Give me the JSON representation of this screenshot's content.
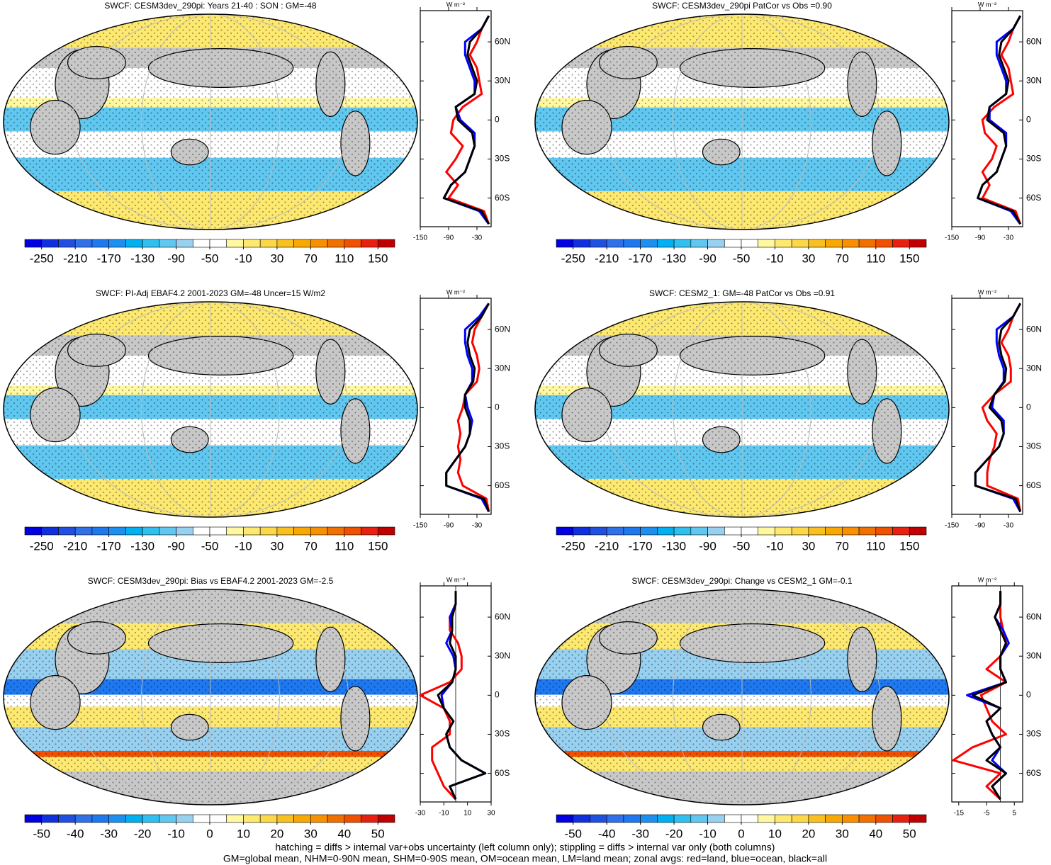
{
  "chart_data": [
    {
      "type": "map-panel",
      "title": "SWCF: CESM3dev_290pi: Years 21-40 : SON : GM=-48",
      "colorbar": {
        "lim": [
          -270,
          170
        ],
        "ticks": [
          -250,
          -210,
          -170,
          -130,
          -90,
          -50,
          -10,
          30,
          70,
          110,
          150
        ]
      },
      "zonal": {
        "units": "W m⁻²",
        "ylim": [
          -82,
          84
        ],
        "xlim": [
          -150,
          0
        ],
        "xticks": [
          -150,
          -90,
          -30
        ],
        "yticks": [
          {
            "value": 60,
            "label": "60N"
          },
          {
            "value": 30,
            "label": "30N"
          },
          0,
          {
            "value": -30,
            "label": "30S"
          },
          {
            "value": -60,
            "label": "60S"
          }
        ],
        "lat": [
          -80,
          -70,
          -60,
          -50,
          -40,
          -30,
          -20,
          -10,
          0,
          10,
          20,
          30,
          40,
          50,
          60,
          70,
          80
        ],
        "series": [
          {
            "color": "#ff0000",
            "values": [
              -5,
              -15,
              -90,
              -70,
              -95,
              -75,
              -60,
              -85,
              -80,
              -60,
              -20,
              -25,
              -30,
              -45,
              -30,
              -20,
              -5
            ]
          },
          {
            "color": "#0000ff",
            "values": [
              -5,
              -25,
              -100,
              -85,
              -55,
              -45,
              -35,
              -35,
              -65,
              -75,
              -35,
              -35,
              -45,
              -55,
              -55,
              -20,
              -5
            ]
          },
          {
            "color": "#000000",
            "values": [
              -5,
              -20,
              -100,
              -85,
              -55,
              -45,
              -35,
              -40,
              -70,
              -75,
              -35,
              -30,
              -40,
              -50,
              -45,
              -20,
              -5
            ]
          }
        ]
      }
    },
    {
      "type": "map-panel",
      "title": "SWCF: CESM3dev_290pi PatCor vs Obs =0.90",
      "colorbar": {
        "lim": [
          -270,
          170
        ],
        "ticks": [
          -250,
          -210,
          -170,
          -130,
          -90,
          -50,
          -10,
          30,
          70,
          110,
          150
        ]
      },
      "zonal": {
        "units": "W m⁻²",
        "ylim": [
          -82,
          84
        ],
        "xlim": [
          -150,
          0
        ],
        "xticks": [
          -150,
          -90,
          -30
        ],
        "yticks": [
          {
            "value": 60,
            "label": "60N"
          },
          {
            "value": 30,
            "label": "30N"
          },
          0,
          {
            "value": -30,
            "label": "30S"
          },
          {
            "value": -60,
            "label": "60S"
          }
        ],
        "lat": [
          -80,
          -70,
          -60,
          -50,
          -40,
          -30,
          -20,
          -10,
          0,
          10,
          20,
          30,
          40,
          50,
          60,
          70,
          80
        ],
        "series": [
          {
            "color": "#ff0000",
            "values": [
              -5,
              -15,
              -85,
              -70,
              -85,
              -65,
              -55,
              -80,
              -85,
              -60,
              -20,
              -25,
              -30,
              -45,
              -30,
              -20,
              -5
            ]
          },
          {
            "color": "#0000ff",
            "values": [
              -5,
              -25,
              -95,
              -85,
              -55,
              -45,
              -35,
              -35,
              -70,
              -70,
              -35,
              -35,
              -45,
              -55,
              -55,
              -20,
              -5
            ]
          },
          {
            "color": "#000000",
            "values": [
              -5,
              -20,
              -95,
              -85,
              -55,
              -45,
              -35,
              -40,
              -75,
              -70,
              -35,
              -30,
              -40,
              -50,
              -45,
              -20,
              -5
            ]
          }
        ]
      }
    },
    {
      "type": "map-panel",
      "title": "SWCF: PI-Adj EBAF4.2 2001-2023 GM=-48 Uncer=15 W/m2",
      "colorbar": {
        "lim": [
          -270,
          170
        ],
        "ticks": [
          -250,
          -210,
          -170,
          -130,
          -90,
          -50,
          -10,
          30,
          70,
          110,
          150
        ]
      },
      "zonal": {
        "units": "W m⁻²",
        "ylim": [
          -82,
          84
        ],
        "xlim": [
          -150,
          0
        ],
        "xticks": [
          -150,
          -90,
          -30
        ],
        "yticks": [
          {
            "value": 60,
            "label": "60N"
          },
          {
            "value": 30,
            "label": "30N"
          },
          0,
          {
            "value": -30,
            "label": "30S"
          },
          {
            "value": -60,
            "label": "60S"
          }
        ],
        "lat": [
          -80,
          -70,
          -60,
          -50,
          -40,
          -30,
          -20,
          -10,
          0,
          10,
          20,
          30,
          40,
          50,
          60,
          70,
          80
        ],
        "series": [
          {
            "color": "#ff0000",
            "values": [
              -5,
              -10,
              -60,
              -70,
              -65,
              -70,
              -65,
              -70,
              -60,
              -55,
              -30,
              -25,
              -30,
              -40,
              -35,
              -20,
              -5
            ]
          },
          {
            "color": "#0000ff",
            "values": [
              -5,
              -20,
              -95,
              -95,
              -75,
              -55,
              -45,
              -40,
              -50,
              -55,
              -40,
              -40,
              -50,
              -55,
              -55,
              -25,
              -5
            ]
          },
          {
            "color": "#000000",
            "values": [
              -5,
              -15,
              -95,
              -95,
              -75,
              -55,
              -45,
              -45,
              -55,
              -55,
              -38,
              -35,
              -45,
              -50,
              -45,
              -20,
              -5
            ]
          }
        ]
      }
    },
    {
      "type": "map-panel",
      "title": "SWCF: CESM2_1: GM=-48 PatCor vs Obs =0.91",
      "colorbar": {
        "lim": [
          -270,
          170
        ],
        "ticks": [
          -250,
          -210,
          -170,
          -130,
          -90,
          -50,
          -10,
          30,
          70,
          110,
          150
        ]
      },
      "zonal": {
        "units": "W m⁻²",
        "ylim": [
          -82,
          84
        ],
        "xlim": [
          -150,
          0
        ],
        "xticks": [
          -150,
          -90,
          -30
        ],
        "yticks": [
          {
            "value": 60,
            "label": "60N"
          },
          {
            "value": 30,
            "label": "30N"
          },
          0,
          {
            "value": -30,
            "label": "30S"
          },
          {
            "value": -60,
            "label": "60S"
          }
        ],
        "lat": [
          -80,
          -70,
          -60,
          -50,
          -40,
          -30,
          -20,
          -10,
          0,
          10,
          20,
          30,
          40,
          50,
          60,
          70,
          80
        ],
        "series": [
          {
            "color": "#ff0000",
            "values": [
              -5,
              -10,
              -75,
              -75,
              -70,
              -60,
              -55,
              -75,
              -85,
              -60,
              -25,
              -25,
              -30,
              -45,
              -30,
              -20,
              -5
            ]
          },
          {
            "color": "#0000ff",
            "values": [
              -5,
              -20,
              -100,
              -100,
              -75,
              -50,
              -40,
              -40,
              -65,
              -60,
              -40,
              -40,
              -50,
              -55,
              -55,
              -20,
              -5
            ]
          },
          {
            "color": "#000000",
            "values": [
              -5,
              -15,
              -100,
              -100,
              -75,
              -50,
              -40,
              -45,
              -70,
              -60,
              -38,
              -35,
              -45,
              -50,
              -45,
              -20,
              -5
            ]
          }
        ]
      }
    },
    {
      "type": "map-panel",
      "title": "SWCF: CESM3dev_290pi: Bias vs EBAF4.2 2001-2023  GM=-2.5",
      "colorbar": {
        "lim": [
          -55,
          55
        ],
        "ticks": [
          -50,
          -40,
          -30,
          -20,
          -10,
          0,
          10,
          20,
          30,
          40,
          50
        ]
      },
      "zonal": {
        "units": "W m⁻²",
        "ylim": [
          -82,
          84
        ],
        "xlim": [
          -30,
          30
        ],
        "xticks": [
          -30,
          -10,
          10,
          30
        ],
        "yticks": [
          {
            "value": 60,
            "label": "60N"
          },
          {
            "value": 30,
            "label": "30N"
          },
          0,
          {
            "value": -30,
            "label": "30S"
          },
          {
            "value": -60,
            "label": "60S"
          }
        ],
        "lat": [
          -80,
          -70,
          -60,
          -50,
          -40,
          -30,
          -20,
          -10,
          0,
          10,
          20,
          30,
          40,
          50,
          60,
          70,
          80
        ],
        "series": [
          {
            "color": "#ff0000",
            "values": [
              0,
              -10,
              -15,
              -20,
              -20,
              -5,
              -5,
              -10,
              -30,
              -5,
              5,
              5,
              2,
              -5,
              -5,
              0,
              0
            ]
          },
          {
            "color": "#0000ff",
            "values": [
              0,
              -5,
              25,
              5,
              -5,
              -8,
              -2,
              -10,
              -12,
              -3,
              0,
              -2,
              -8,
              -3,
              -5,
              0,
              0
            ]
          },
          {
            "color": "#000000",
            "values": [
              0,
              -5,
              25,
              5,
              -5,
              -8,
              -2,
              -10,
              -15,
              -3,
              0,
              0,
              -5,
              -3,
              -3,
              0,
              0
            ]
          }
        ]
      }
    },
    {
      "type": "map-panel",
      "title": "SWCF: CESM3dev_290pi: Change vs CESM2_1 GM=-0.1",
      "colorbar": {
        "lim": [
          -55,
          55
        ],
        "ticks": [
          -50,
          -40,
          -30,
          -20,
          -10,
          0,
          10,
          20,
          30,
          40,
          50
        ]
      },
      "zonal": {
        "units": "W m⁻²",
        "ylim": [
          -82,
          84
        ],
        "xlim": [
          -17.5,
          8
        ],
        "xticks": [
          -15,
          -5,
          5
        ],
        "yticks": [
          {
            "value": 60,
            "label": "60N"
          },
          {
            "value": 30,
            "label": "30N"
          },
          0,
          {
            "value": -30,
            "label": "30S"
          },
          {
            "value": -60,
            "label": "60S"
          }
        ],
        "lat": [
          -80,
          -70,
          -60,
          -50,
          -40,
          -30,
          -20,
          -10,
          0,
          10,
          20,
          30,
          40,
          50,
          60,
          70,
          80
        ],
        "series": [
          {
            "color": "#ff0000",
            "values": [
              0,
              -5,
              0,
              -17,
              -10,
              2,
              -3,
              -5,
              -7,
              2,
              -5,
              0,
              2,
              1,
              0,
              0,
              0
            ]
          },
          {
            "color": "#0000ff",
            "values": [
              0,
              -3,
              2,
              -3,
              0,
              -3,
              -5,
              0,
              -12,
              2,
              0,
              0,
              3,
              1,
              -2,
              0,
              0
            ]
          },
          {
            "color": "#000000",
            "values": [
              0,
              -3,
              2,
              -5,
              0,
              -3,
              -5,
              0,
              -10,
              2,
              0,
              0,
              2,
              0,
              -2,
              0,
              0
            ]
          }
        ]
      }
    }
  ],
  "colorbar_colors": [
    "#0000e0",
    "#1030e0",
    "#2050e0",
    "#3070e8",
    "#1e78f0",
    "#1c90f0",
    "#00b0f0",
    "#30c0f0",
    "#60c8f0",
    "#98d0f0",
    "#ffffff",
    "#ffffff",
    "#fff8a0",
    "#fde870",
    "#fcd848",
    "#f8c020",
    "#f8a800",
    "#f89000",
    "#f07000",
    "#f05000",
    "#e82010",
    "#c00000"
  ],
  "footer": [
    "hatching = diffs > internal var+obs uncertainty (left column only); stippling = diffs > internal var only (both columns)",
    "GM=global mean, NHM=0-90N mean, SHM=0-90S mean, OM=ocean mean, LM=land mean; zonal avgs: red=land, blue=ocean, black=all"
  ]
}
